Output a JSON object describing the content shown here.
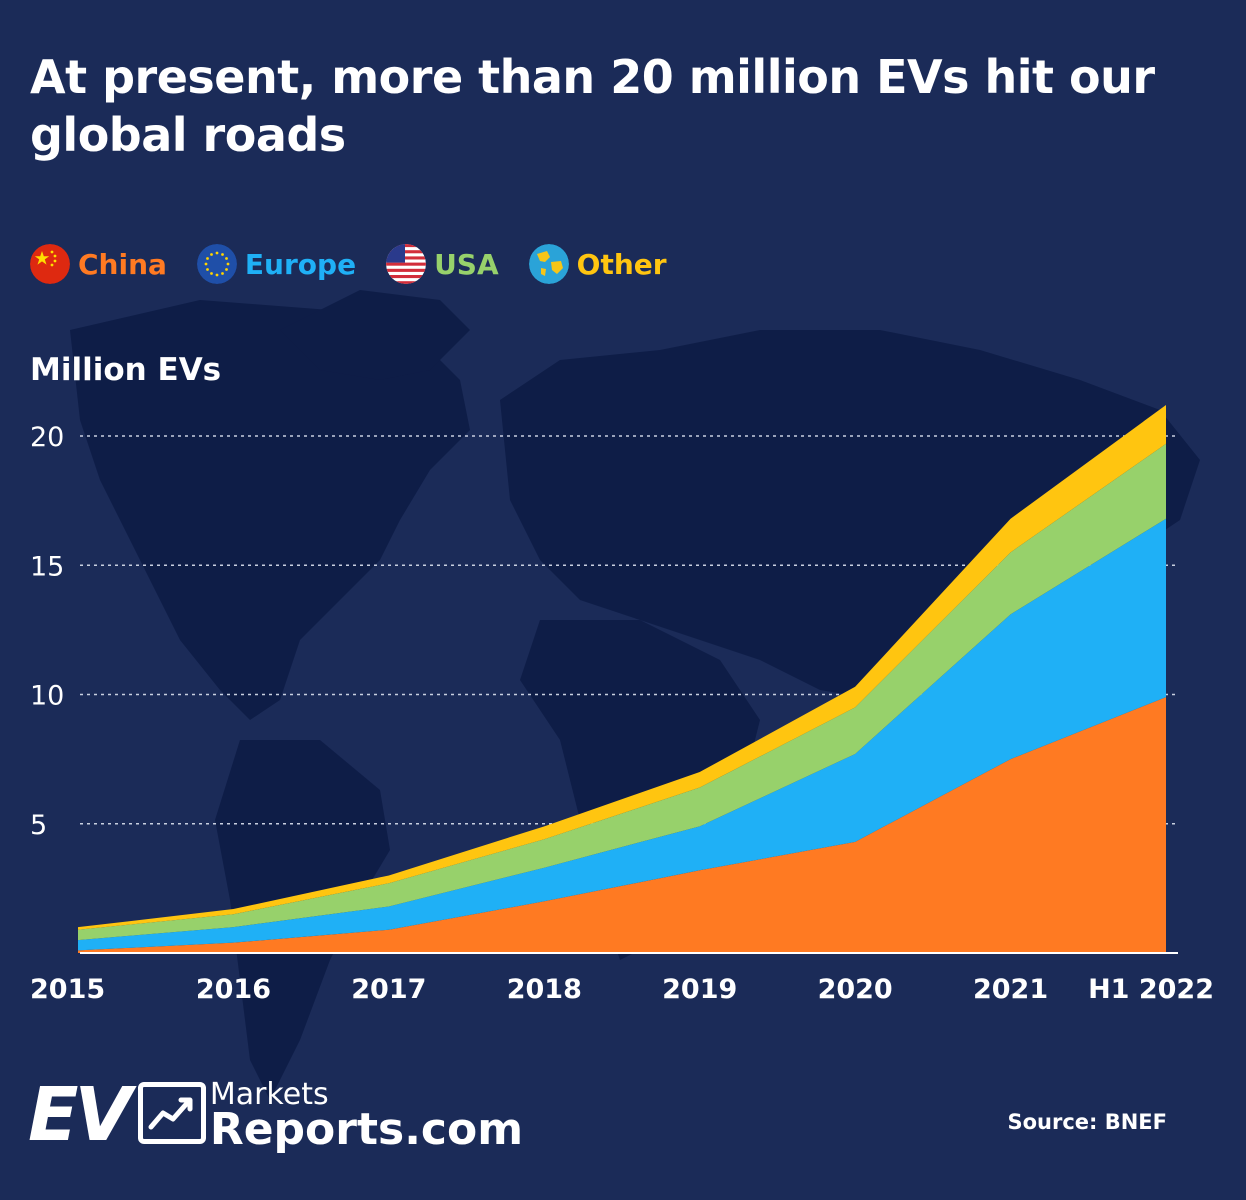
{
  "title": "At present, more than 20 million EVs hit our global roads",
  "legend": [
    {
      "label": "China",
      "color": "#ff7a22",
      "icon": "china-flag-icon"
    },
    {
      "label": "Europe",
      "color": "#1fb0f6",
      "icon": "eu-flag-icon"
    },
    {
      "label": "USA",
      "color": "#97d16b",
      "icon": "us-flag-icon"
    },
    {
      "label": "Other",
      "color": "#ffc510",
      "icon": "globe-icon"
    }
  ],
  "chart_data": {
    "type": "area",
    "stacked": true,
    "ylabel": "Million EVs",
    "ylim": [
      0,
      20
    ],
    "yticks": [
      5,
      10,
      15,
      20
    ],
    "grid": true,
    "categories": [
      "2015",
      "2016",
      "2017",
      "2018",
      "2019",
      "2020",
      "2021",
      "H1 2022"
    ],
    "series": [
      {
        "name": "China",
        "color": "#ff7a22",
        "values": [
          0.1,
          0.4,
          0.9,
          2.0,
          3.2,
          4.3,
          7.5,
          9.9
        ]
      },
      {
        "name": "Europe",
        "color": "#1fb0f6",
        "values": [
          0.4,
          0.6,
          0.9,
          1.3,
          1.7,
          3.4,
          5.6,
          6.9
        ]
      },
      {
        "name": "USA",
        "color": "#97d16b",
        "values": [
          0.4,
          0.5,
          0.9,
          1.1,
          1.5,
          1.8,
          2.4,
          2.9
        ]
      },
      {
        "name": "Other",
        "color": "#ffc510",
        "values": [
          0.1,
          0.2,
          0.3,
          0.5,
          0.6,
          0.8,
          1.3,
          1.5
        ]
      }
    ]
  },
  "brand": {
    "ev": "EV",
    "markets": "Markets",
    "reports": "Reports.com"
  },
  "source": "Source: BNEF"
}
